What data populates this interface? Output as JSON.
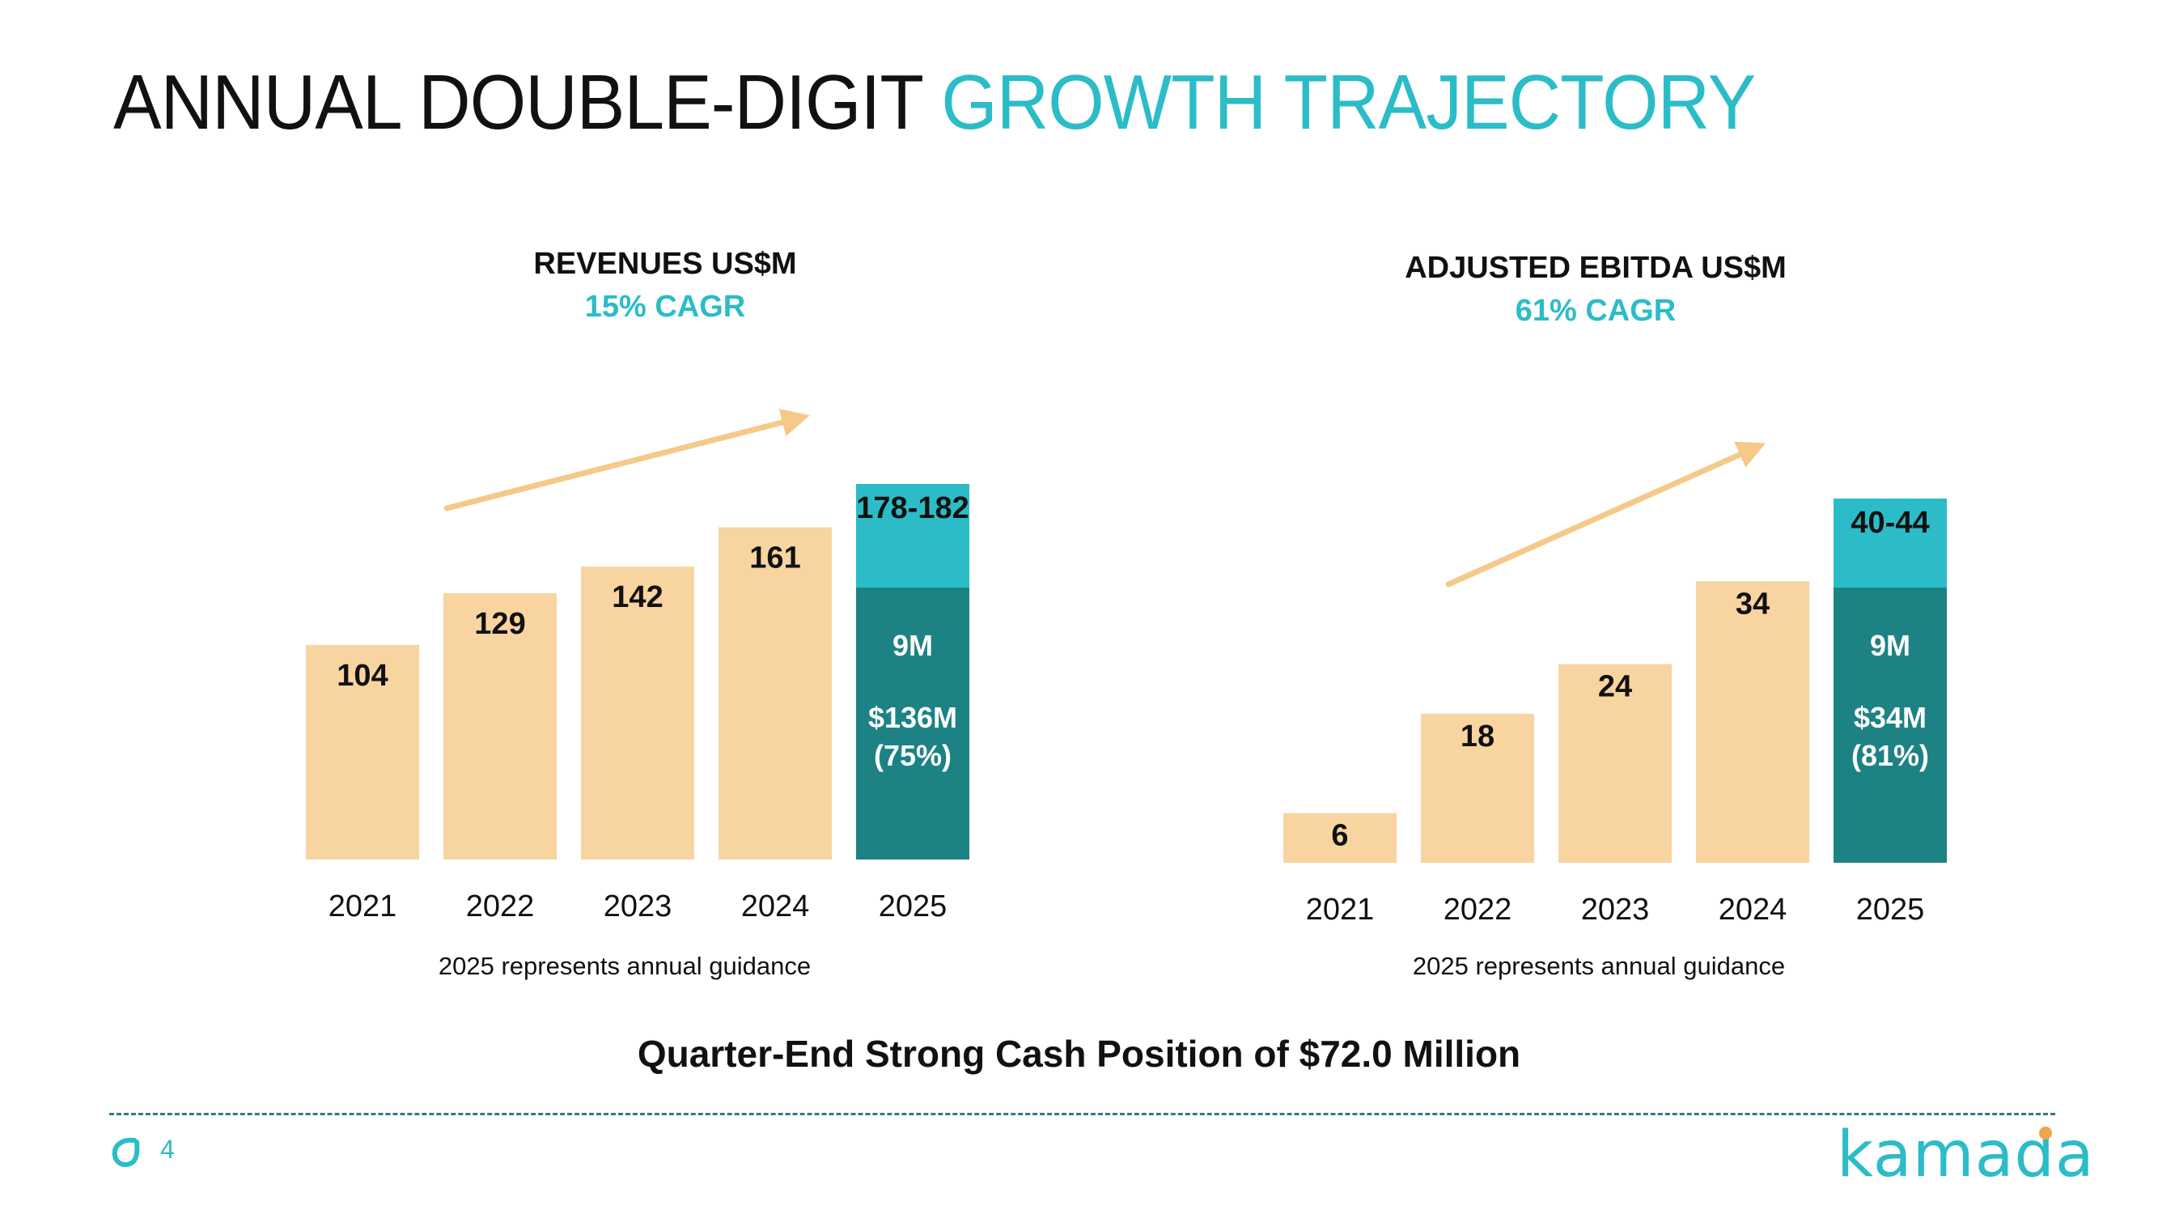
{
  "slide": {
    "title_main": "ANNUAL DOUBLE-DIGIT",
    "title_accent": "GROWTH TRAJECTORY",
    "cash_note": "Quarter-End Strong Cash Position of $72.0 Million",
    "page_number": "4",
    "logo_text": "kamada"
  },
  "colors": {
    "bar": "#f8d4a0",
    "guidance_upper": "#2bbcc8",
    "guidance_lower": "#1d8284",
    "arrow": "#f5c98a",
    "accent": "#2bbcc8"
  },
  "chart_data": [
    {
      "type": "bar",
      "title": "REVENUES US$M",
      "subtitle": "15% CAGR",
      "categories": [
        "2021",
        "2022",
        "2023",
        "2024",
        "2025"
      ],
      "values": [
        104,
        129,
        142,
        161,
        180
      ],
      "value_labels": [
        "104",
        "129",
        "142",
        "161",
        "178-182"
      ],
      "guidance": {
        "category": "2025",
        "base_value": 136,
        "base_label": "$136M",
        "base_share": "(75%)",
        "increment_label": "9M",
        "range_label": "178-182"
      },
      "ylim": [
        0,
        182
      ],
      "note": "2025 represents annual guidance"
    },
    {
      "type": "bar",
      "title": "ADJUSTED EBITDA US$M",
      "subtitle": "61% CAGR",
      "categories": [
        "2021",
        "2022",
        "2023",
        "2024",
        "2025"
      ],
      "values": [
        6,
        18,
        24,
        34,
        42
      ],
      "value_labels": [
        "6",
        "18",
        "24",
        "34",
        "40-44"
      ],
      "guidance": {
        "category": "2025",
        "base_value": 34,
        "base_label": "$34M",
        "base_share": "(81%)",
        "increment_label": "9M",
        "range_label": "40-44"
      },
      "ylim": [
        0,
        44
      ],
      "note": "2025 represents annual guidance"
    }
  ]
}
